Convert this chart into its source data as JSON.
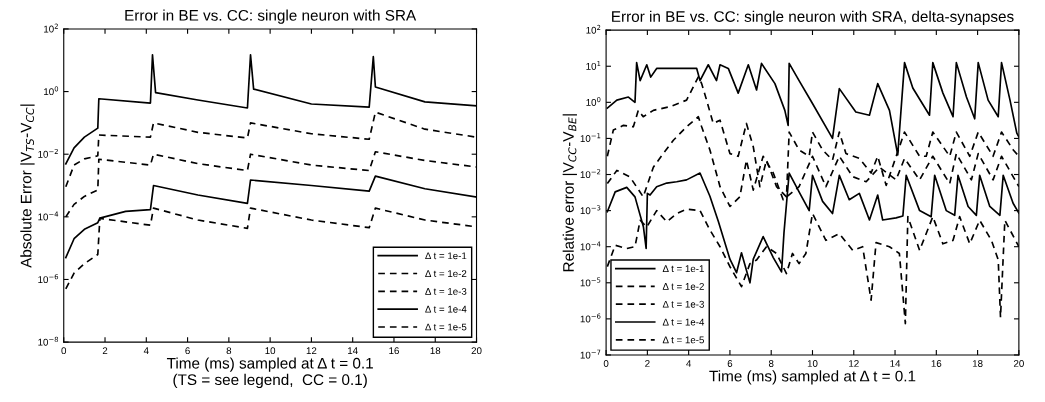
{
  "chart_data": [
    {
      "type": "line",
      "title": "Error in BE vs. CC: single neuron with SRA",
      "xlabel": "Time (ms) sampled at Δ t = 0.1\n(TS = see legend,  CC = 0.1)",
      "ylabel": "Absolute Error |V$_{TS}$-V$_{CC}$|",
      "log": "y",
      "xlim": [
        0,
        20
      ],
      "xticks": [
        0,
        2,
        4,
        6,
        8,
        10,
        12,
        14,
        16,
        18,
        20
      ],
      "ylim": [
        1e-08,
        100
      ],
      "yticks": [
        {
          "value": 1e-08,
          "label": "10$^{−8}$"
        },
        {
          "value": 1e-06,
          "label": "10$^{−6}$"
        },
        {
          "value": 0.0001,
          "label": "10$^{−4}$"
        },
        {
          "value": 0.01,
          "label": "10$^{−2}$"
        },
        {
          "value": 1,
          "label": "10$^{0}$"
        },
        {
          "value": 100,
          "label": "10$^{2}$"
        }
      ],
      "grid": false,
      "legend": "bottom right",
      "marker": "none",
      "series": [
        {
          "name": "Δ t = 1e-1",
          "color": "#000000",
          "line_style": "solid",
          "x": [
            0.1,
            0.5,
            1.0,
            1.65,
            1.7,
            4.2,
            4.3,
            4.45,
            6.5,
            8.9,
            9.05,
            9.2,
            12,
            14.8,
            15.0,
            15.1,
            17.5,
            20
          ],
          "values": [
            0.0049,
            0.016,
            0.035,
            0.068,
            0.59,
            0.43,
            15,
            0.93,
            0.54,
            0.3,
            15,
            1.2,
            0.4,
            0.32,
            13,
            1.4,
            0.47,
            0.35
          ]
        },
        {
          "name": "Δ t = 1e-2",
          "color": "#000000",
          "line_style": "dashed",
          "x": [
            0.1,
            0.5,
            1.0,
            1.65,
            1.7,
            4.2,
            4.35,
            6.5,
            8.9,
            9.05,
            12,
            14.8,
            15.1,
            17.5,
            20
          ],
          "values": [
            0.00091,
            0.0045,
            0.0071,
            0.0089,
            0.041,
            0.035,
            0.1,
            0.05,
            0.033,
            0.1,
            0.045,
            0.03,
            0.22,
            0.063,
            0.035
          ]
        },
        {
          "name": "Δ t = 1e-3",
          "color": "#000000",
          "line_style": "dashed",
          "x": [
            0.1,
            0.5,
            1.0,
            1.65,
            1.7,
            4.2,
            4.35,
            6.5,
            8.9,
            9.05,
            12,
            14.8,
            15.1,
            17.5,
            20
          ],
          "values": [
            0.0001,
            0.00025,
            0.00045,
            0.00072,
            0.0069,
            0.0045,
            0.01,
            0.005,
            0.003,
            0.01,
            0.0045,
            0.003,
            0.012,
            0.0063,
            0.0039
          ]
        },
        {
          "name": "Δ t = 1e-4",
          "color": "#000000",
          "line_style": "solid",
          "x": [
            0.1,
            0.5,
            1.0,
            1.65,
            1.75,
            3.0,
            4.2,
            4.35,
            6.5,
            8.9,
            9.05,
            12,
            14.8,
            15.1,
            17.5,
            20
          ],
          "values": [
            5e-06,
            2e-05,
            4e-05,
            6.5e-05,
            9.1e-05,
            0.00015,
            0.00017,
            0.001,
            0.0005,
            0.00027,
            0.0015,
            0.001,
            0.00066,
            0.002,
            0.00079,
            0.00043
          ]
        },
        {
          "name": "Δ t = 1e-5",
          "color": "#000000",
          "line_style": "dashed",
          "x": [
            0.1,
            0.5,
            1.0,
            1.65,
            1.75,
            4.2,
            4.35,
            6.5,
            8.9,
            9.05,
            12,
            14.8,
            15.1,
            17.5,
            20
          ],
          "values": [
            5e-07,
            1.6e-06,
            3.2e-06,
            6.3e-06,
            8.9e-05,
            5.4e-05,
            0.00019,
            7.9e-05,
            4.3e-05,
            0.00019,
            7.9e-05,
            4.5e-05,
            0.00019,
            7.9e-05,
            4.8e-05
          ]
        }
      ]
    },
    {
      "type": "line",
      "title": "Error in BE vs. CC: single neuron with SRA, delta-synapses",
      "xlabel": "Time (ms) sampled at Δ t = 0.1",
      "ylabel": "Relative error |V$_{CC}$-V$_{BE}$|",
      "log": "y",
      "xlim": [
        0,
        20
      ],
      "xticks": [
        0,
        2,
        4,
        6,
        8,
        10,
        12,
        14,
        16,
        18,
        20
      ],
      "ylim": [
        1e-07,
        100
      ],
      "yticks": [
        {
          "value": 1e-07,
          "label": "10$^{−7}$"
        },
        {
          "value": 1e-06,
          "label": "10$^{−6}$"
        },
        {
          "value": 1e-05,
          "label": "10$^{−5}$"
        },
        {
          "value": 0.0001,
          "label": "10$^{−4}$"
        },
        {
          "value": 0.001,
          "label": "10$^{−3}$"
        },
        {
          "value": 0.01,
          "label": "10$^{−2}$"
        },
        {
          "value": 0.1,
          "label": "10$^{−1}$"
        },
        {
          "value": 1,
          "label": "10$^{0}$"
        },
        {
          "value": 10,
          "label": "10$^{1}$"
        },
        {
          "value": 100,
          "label": "10$^{2}$"
        }
      ],
      "grid": false,
      "legend": "bottom left",
      "marker": "none",
      "series": [
        {
          "name": "Δ t = 1e-1",
          "color": "#000000",
          "line_style": "solid",
          "x": [
            0.06,
            0.52,
            1.08,
            1.4,
            1.48,
            1.65,
            1.97,
            2.16,
            2.45,
            3.1,
            3.9,
            4.39,
            4.55,
            4.95,
            5.35,
            5.52,
            5.92,
            6.4,
            6.89,
            7.29,
            7.53,
            8.18,
            8.66,
            8.82,
            8.87,
            9.35,
            10.0,
            10.97,
            11.3,
            12.1,
            12.76,
            13.16,
            13.73,
            14.13,
            14.46,
            14.86,
            15.67,
            15.83,
            16.32,
            16.81,
            16.97,
            17.46,
            17.86,
            18.03,
            18.51,
            19.0,
            19.16,
            19.57,
            19.9,
            20
          ],
          "values": [
            0.69,
            1.15,
            1.4,
            1.0,
            12.6,
            4.0,
            11,
            5.0,
            8.7,
            8.7,
            8.7,
            8.7,
            4.0,
            11,
            4.0,
            11,
            8.7,
            1.8,
            11,
            2.2,
            12,
            3.3,
            0.6,
            0.23,
            12,
            4.0,
            0.93,
            0.1,
            2.4,
            0.54,
            0.44,
            3.3,
            0.6,
            0.035,
            12.6,
            2.5,
            0.44,
            12.6,
            1.8,
            0.4,
            12.6,
            1.4,
            0.35,
            12.6,
            1.15,
            0.4,
            12.6,
            1.15,
            0.14,
            0.11
          ]
        },
        {
          "name": "Δ t = 1e-2",
          "color": "#000000",
          "line_style": "dashed",
          "x": [
            0.06,
            0.35,
            0.84,
            1.32,
            1.56,
            1.8,
            2.29,
            3.1,
            3.9,
            4.47,
            4.63,
            4.87,
            5.19,
            5.52,
            6.0,
            6.4,
            6.8,
            7.13,
            7.45,
            7.77,
            8.26,
            8.74,
            8.87,
            9.35,
            9.84,
            10.0,
            10.49,
            10.97,
            11.3,
            11.62,
            12.27,
            12.84,
            13.16,
            13.57,
            14.46,
            15.19,
            15.51,
            15.83,
            16.65,
            16.97,
            17.62,
            18.03,
            18.75,
            19.16,
            19.73,
            20
          ],
          "values": [
            0.032,
            0.17,
            0.23,
            0.21,
            0.6,
            0.4,
            0.6,
            0.76,
            1.15,
            5.1,
            3.3,
            1.15,
            0.26,
            0.32,
            0.038,
            0.032,
            0.26,
            0.059,
            0.0046,
            0.025,
            0.0046,
            0.0024,
            0.15,
            0.048,
            0.032,
            0.15,
            0.048,
            0.025,
            0.15,
            0.038,
            0.028,
            0.011,
            0.032,
            0.005,
            0.15,
            0.032,
            0.032,
            0.15,
            0.032,
            0.15,
            0.032,
            0.15,
            0.032,
            0.15,
            0.048,
            0.032
          ]
        },
        {
          "name": "Δ t = 1e-3",
          "color": "#000000",
          "line_style": "dashed",
          "x": [
            0.06,
            0.52,
            1.16,
            1.8,
            2.29,
            2.77,
            3.26,
            3.9,
            4.47,
            4.63,
            5.03,
            5.52,
            6.0,
            6.48,
            6.8,
            7.13,
            7.61,
            8.1,
            8.58,
            9.35,
            10.0,
            10.65,
            11.3,
            11.95,
            12.6,
            13.24,
            14.05,
            14.46,
            15.19,
            15.83,
            16.65,
            16.97,
            17.7,
            18.03,
            18.75,
            19.16,
            20
          ],
          "values": [
            0.0056,
            0.013,
            0.0085,
            0.0024,
            0.016,
            0.038,
            0.089,
            0.21,
            0.4,
            0.21,
            0.048,
            0.0046,
            0.0013,
            0.0024,
            0.025,
            0.0037,
            0.032,
            0.011,
            0.002,
            0.0046,
            0.032,
            0.0046,
            0.032,
            0.0087,
            0.0063,
            0.016,
            0.0071,
            0.028,
            0.0071,
            0.032,
            0.0056,
            0.038,
            0.0071,
            0.038,
            0.0071,
            0.032,
            0.0046
          ]
        },
        {
          "name": "Δ t = 1e-4",
          "color": "#000000",
          "line_style": "solid",
          "x": [
            0.06,
            0.44,
            1.0,
            1.4,
            1.81,
            1.94,
            2.0,
            2.13,
            2.45,
            2.94,
            3.42,
            3.9,
            4.55,
            5.03,
            5.44,
            6.0,
            6.32,
            6.56,
            6.97,
            7.13,
            7.61,
            8.1,
            8.5,
            8.62,
            8.87,
            9.35,
            9.84,
            10.0,
            10.49,
            10.97,
            11.3,
            11.78,
            12.27,
            12.76,
            13.16,
            13.4,
            14.05,
            14.38,
            14.54,
            15.19,
            15.75,
            15.92,
            16.48,
            16.89,
            17.05,
            17.54,
            17.94,
            18.1,
            18.59,
            19.08,
            19.24,
            19.72,
            20
          ],
          "values": [
            0.00093,
            0.0033,
            0.0044,
            0.0024,
            0.00035,
            8.9e-05,
            0.003,
            0.0027,
            0.0046,
            0.0058,
            0.0063,
            0.0071,
            0.011,
            0.0025,
            0.0005,
            4.5e-05,
            1.9e-05,
            6.8e-05,
            1e-05,
            4.5e-05,
            0.00019,
            5e-05,
            2e-05,
            0.00025,
            0.011,
            0.0033,
            0.001,
            0.0095,
            0.0018,
            0.00083,
            0.0095,
            0.002,
            0.003,
            0.00055,
            0.0027,
            0.00055,
            0.00063,
            0.00071,
            0.0095,
            0.001,
            0.00068,
            0.0095,
            0.001,
            0.00074,
            0.0095,
            0.0013,
            0.00074,
            0.0095,
            0.0013,
            0.00074,
            0.0095,
            0.0016,
            0.00085
          ]
        },
        {
          "name": "Δ t = 1e-5",
          "color": "#000000",
          "line_style": "dashed",
          "x": [
            0.06,
            0.44,
            1.0,
            1.4,
            1.65,
            1.97,
            2.45,
            2.94,
            3.42,
            3.9,
            4.55,
            5.03,
            5.52,
            6.0,
            6.56,
            6.97,
            7.29,
            7.77,
            8.26,
            8.74,
            9.03,
            9.35,
            9.68,
            10.0,
            10.65,
            11.3,
            11.95,
            12.43,
            12.84,
            13.08,
            13.73,
            14.21,
            14.5,
            14.62,
            15.19,
            15.83,
            16.32,
            16.81,
            17.13,
            17.62,
            18.1,
            18.67,
            19.0,
            19.11,
            19.32,
            20
          ],
          "values": [
            2.8e-05,
            0.00011,
            8.9e-05,
            0.0001,
            0.00054,
            0.00035,
            0.001,
            0.00049,
            0.00083,
            0.0011,
            0.001,
            0.00029,
            0.0001,
            2.8e-05,
            7.8e-06,
            3.4e-05,
            4.3e-05,
            0.0001,
            6.5e-05,
            1.8e-05,
            6.5e-05,
            3.4e-05,
            6.5e-05,
            0.00083,
            0.00015,
            0.00023,
            7.9e-05,
            0.0001,
            3.3e-06,
            0.00013,
            0.0001,
            6.5e-05,
            7.4e-07,
            0.00068,
            7.9e-05,
            0.00068,
            0.00012,
            0.00015,
            0.00068,
            0.00012,
            0.00054,
            0.00015,
            4.3e-05,
            1.1e-06,
            0.00054,
            0.0001
          ]
        }
      ]
    }
  ]
}
